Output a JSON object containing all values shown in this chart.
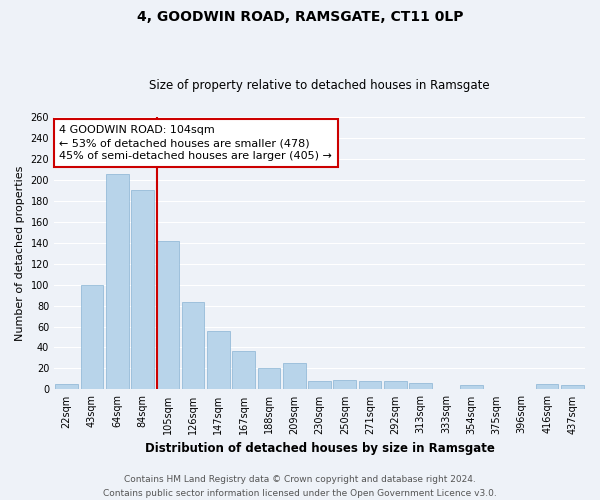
{
  "title": "4, GOODWIN ROAD, RAMSGATE, CT11 0LP",
  "subtitle": "Size of property relative to detached houses in Ramsgate",
  "xlabel": "Distribution of detached houses by size in Ramsgate",
  "ylabel": "Number of detached properties",
  "bar_labels": [
    "22sqm",
    "43sqm",
    "64sqm",
    "84sqm",
    "105sqm",
    "126sqm",
    "147sqm",
    "167sqm",
    "188sqm",
    "209sqm",
    "230sqm",
    "250sqm",
    "271sqm",
    "292sqm",
    "313sqm",
    "333sqm",
    "354sqm",
    "375sqm",
    "396sqm",
    "416sqm",
    "437sqm"
  ],
  "bar_values": [
    5,
    100,
    205,
    190,
    142,
    83,
    56,
    37,
    20,
    25,
    8,
    9,
    8,
    8,
    6,
    0,
    4,
    0,
    0,
    5,
    4
  ],
  "bar_color": "#b8d4ea",
  "bar_edge_color": "#8ab4d4",
  "vline_color": "#cc0000",
  "vline_index": 3.575,
  "ylim": [
    0,
    260
  ],
  "yticks": [
    0,
    20,
    40,
    60,
    80,
    100,
    120,
    140,
    160,
    180,
    200,
    220,
    240,
    260
  ],
  "annotation_text": "4 GOODWIN ROAD: 104sqm\n← 53% of detached houses are smaller (478)\n45% of semi-detached houses are larger (405) →",
  "annotation_box_color": "#ffffff",
  "annotation_box_edge": "#cc0000",
  "footer_line1": "Contains HM Land Registry data © Crown copyright and database right 2024.",
  "footer_line2": "Contains public sector information licensed under the Open Government Licence v3.0.",
  "background_color": "#eef2f8",
  "plot_background_color": "#eef2f8",
  "grid_color": "#ffffff",
  "title_fontsize": 10,
  "subtitle_fontsize": 8.5,
  "xlabel_fontsize": 8.5,
  "ylabel_fontsize": 8,
  "tick_fontsize": 7,
  "footer_fontsize": 6.5,
  "annotation_fontsize": 8
}
